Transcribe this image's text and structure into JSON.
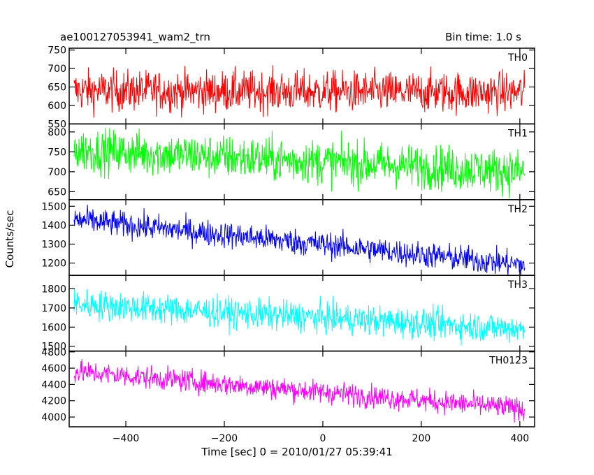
{
  "header": {
    "title": "ae100127053941_wam2_trn",
    "bin_time": "Bin time: 1.0 s"
  },
  "chart_data": {
    "type": "line",
    "xlabel": "Time [sec] 0 = 2010/01/27 05:39:41",
    "ylabel": "Counts/sec",
    "xlim": [
      -515,
      430
    ],
    "x_ticks": [
      -400,
      -200,
      0,
      200,
      400
    ],
    "x_range": [
      -505,
      410
    ],
    "grid": false,
    "panels": [
      {
        "name": "TH0",
        "color": "#ff0000",
        "ylim": [
          550,
          755
        ],
        "yticks": [
          550,
          600,
          650,
          700,
          750
        ],
        "start": 640,
        "end": 635,
        "noise": 28
      },
      {
        "name": "TH1",
        "color": "#00ff00",
        "ylim": [
          630,
          820
        ],
        "yticks": [
          650,
          700,
          750,
          800
        ],
        "tick_labels": [
          "650",
          "700",
          "750",
          "800"
        ],
        "start": 755,
        "end": 700,
        "noise": 28
      },
      {
        "name": "TH2",
        "color": "#0000ff",
        "ylim": [
          1135,
          1535
        ],
        "yticks": [
          1200,
          1300,
          1400,
          1500
        ],
        "start": 1430,
        "end": 1190,
        "noise": 35
      },
      {
        "name": "TH3",
        "color": "#00ffff",
        "ylim": [
          1475,
          1870
        ],
        "yticks": [
          1500,
          1600,
          1700,
          1800
        ],
        "start": 1720,
        "end": 1590,
        "noise": 40
      },
      {
        "name": "TH0123",
        "color": "#ff00ff",
        "ylim": [
          3880,
          4810
        ],
        "yticks": [
          4000,
          4200,
          4400,
          4600,
          4800
        ],
        "start": 4560,
        "end": 4100,
        "noise": 70
      }
    ]
  }
}
